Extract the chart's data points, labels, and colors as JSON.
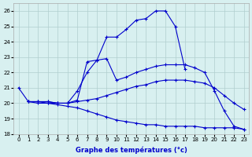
{
  "xlabel": "Graphe des températures (°c)",
  "background_color": "#d8f0f0",
  "grid_color": "#b0cece",
  "line_color": "#0000cc",
  "ylim": [
    18,
    26.5
  ],
  "xlim": [
    -0.5,
    23.5
  ],
  "yticks": [
    18,
    19,
    20,
    21,
    22,
    23,
    24,
    25,
    26
  ],
  "xticks": [
    0,
    1,
    2,
    3,
    4,
    5,
    6,
    7,
    8,
    9,
    10,
    11,
    12,
    13,
    14,
    15,
    16,
    17,
    18,
    19,
    20,
    21,
    22,
    23
  ],
  "series": [
    {
      "x": [
        1,
        2,
        3,
        4,
        5,
        6,
        7,
        8,
        9,
        10,
        11,
        12,
        13,
        14,
        15,
        16,
        17
      ],
      "y": [
        20.1,
        20.1,
        20.1,
        20.0,
        20.0,
        20.8,
        22.0,
        22.8,
        24.3,
        24.3,
        24.8,
        25.4,
        25.5,
        26.0,
        26.0,
        25.0,
        22.2
      ]
    },
    {
      "x": [
        1,
        2,
        3,
        4,
        5,
        6,
        7,
        8,
        9,
        10,
        11,
        12,
        13,
        14,
        15,
        16,
        17,
        18,
        19,
        20,
        21,
        22,
        23
      ],
      "y": [
        20.1,
        20.1,
        20.1,
        20.0,
        20.0,
        20.2,
        22.7,
        22.8,
        22.9,
        21.5,
        21.7,
        22.0,
        22.2,
        22.4,
        22.5,
        22.5,
        22.5,
        22.3,
        22.0,
        20.8,
        19.5,
        18.5,
        18.3
      ]
    },
    {
      "x": [
        1,
        2,
        3,
        4,
        5,
        6,
        7,
        8,
        9,
        10,
        11,
        12,
        13,
        14,
        15,
        16,
        17,
        18,
        19,
        20,
        21,
        22,
        23
      ],
      "y": [
        20.1,
        20.1,
        20.0,
        20.0,
        20.0,
        20.1,
        20.2,
        20.3,
        20.5,
        20.7,
        20.9,
        21.1,
        21.2,
        21.4,
        21.5,
        21.5,
        21.5,
        21.4,
        21.3,
        21.0,
        20.5,
        20.0,
        19.6
      ]
    },
    {
      "x": [
        0,
        1,
        2,
        3,
        4,
        5,
        6,
        7,
        8,
        9,
        10,
        11,
        12,
        13,
        14,
        15,
        16,
        17,
        18,
        19,
        20,
        21,
        22,
        23
      ],
      "y": [
        21.0,
        20.1,
        20.0,
        20.0,
        19.9,
        19.8,
        19.7,
        19.5,
        19.3,
        19.1,
        18.9,
        18.8,
        18.7,
        18.6,
        18.6,
        18.5,
        18.5,
        18.5,
        18.5,
        18.4,
        18.4,
        18.4,
        18.4,
        18.3
      ]
    }
  ]
}
